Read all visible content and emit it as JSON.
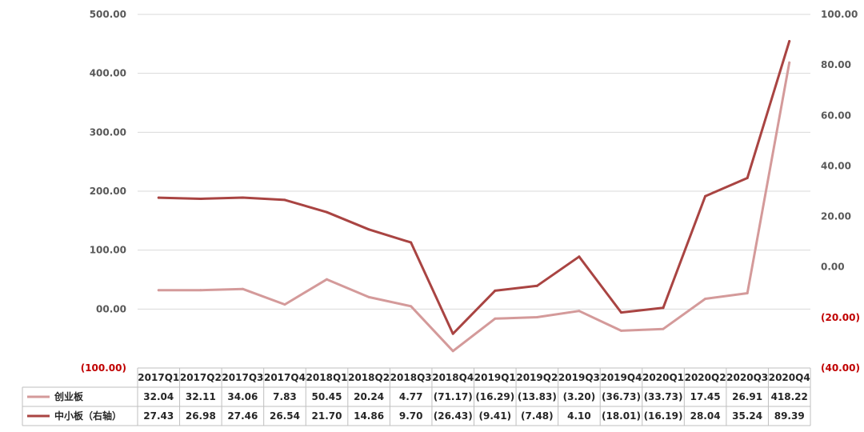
{
  "chart_data": {
    "type": "line",
    "title": "",
    "categories": [
      "2017Q1",
      "2017Q2",
      "2017Q3",
      "2017Q4",
      "2018Q1",
      "2018Q2",
      "2018Q3",
      "2018Q4",
      "2019Q1",
      "2019Q2",
      "2019Q3",
      "2019Q4",
      "2020Q1",
      "2020Q2",
      "2020Q3",
      "2020Q4"
    ],
    "left_axis": {
      "ylim": [
        -100,
        500
      ],
      "ticks": [
        500,
        400,
        300,
        200,
        100,
        0,
        -100
      ],
      "tick_labels": [
        "500.00",
        "400.00",
        "300.00",
        "200.00",
        "100.00",
        "00.00",
        "(100.00)"
      ],
      "negative_color": "#c00000"
    },
    "right_axis": {
      "ylim": [
        -40,
        100
      ],
      "ticks": [
        100,
        80,
        60,
        40,
        20,
        0,
        -20,
        -40
      ],
      "tick_labels": [
        "100.00",
        "80.00",
        "60.00",
        "40.00",
        "20.00",
        "0.00",
        "(20.00)",
        "(40.00)"
      ],
      "negative_color": "#c00000"
    },
    "grid": true,
    "legend": "data-table",
    "series": [
      {
        "name": "创业板",
        "axis": "left",
        "color": "#d49a9a",
        "values": [
          32.04,
          32.11,
          34.06,
          7.83,
          50.45,
          20.24,
          4.77,
          -71.17,
          -16.29,
          -13.83,
          -3.2,
          -36.73,
          -33.73,
          17.45,
          26.91,
          418.22
        ],
        "labels": [
          "32.04",
          "32.11",
          "34.06",
          "7.83",
          "50.45",
          "20.24",
          "4.77",
          "(71.17)",
          "(16.29)",
          "(13.83)",
          "(3.20)",
          "(36.73)",
          "(33.73)",
          "17.45",
          "26.91",
          "418.22"
        ]
      },
      {
        "name": "中小板（右轴）",
        "axis": "right",
        "color": "#a94442",
        "values": [
          27.43,
          26.98,
          27.46,
          26.54,
          21.7,
          14.86,
          9.7,
          -26.43,
          -9.41,
          -7.48,
          4.1,
          -18.01,
          -16.19,
          28.04,
          35.24,
          89.39
        ],
        "labels": [
          "27.43",
          "26.98",
          "27.46",
          "26.54",
          "21.70",
          "14.86",
          "9.70",
          "(26.43)",
          "(9.41)",
          "(7.48)",
          "4.10",
          "(18.01)",
          "(16.19)",
          "28.04",
          "35.24",
          "89.39"
        ]
      }
    ]
  }
}
